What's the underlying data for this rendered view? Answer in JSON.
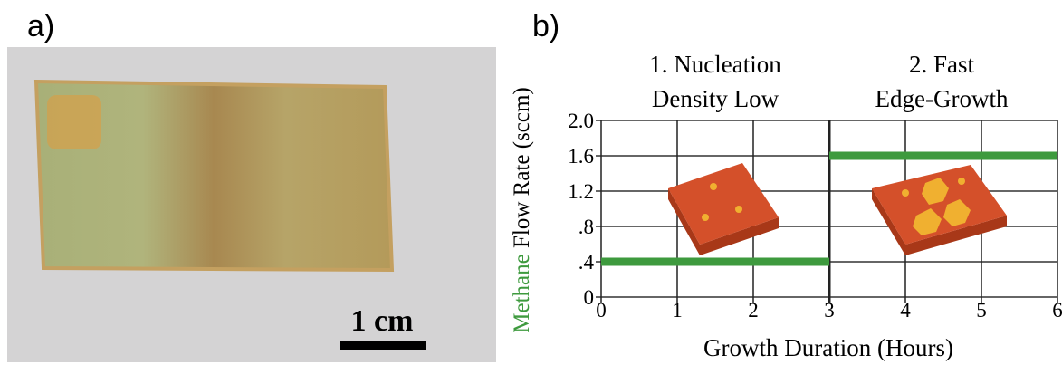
{
  "panel_a": {
    "label": "a)",
    "scale_bar": "1 cm"
  },
  "chart_data": {
    "type": "line",
    "panel_label": "b)",
    "annotations": [
      "1. Nucleation",
      "Density Low",
      "2. Fast",
      "Edge-Growth"
    ],
    "xlabel": "Growth Duration (Hours)",
    "ylabel_parts": [
      "Methane",
      "Flow Rate (sccm)"
    ],
    "ylabel_highlight_color": "#3e9a3e",
    "series": [
      {
        "color": "#3e9a3e",
        "x": [
          0,
          3
        ],
        "values": [
          0.4,
          0.4
        ]
      },
      {
        "color": "#3e9a3e",
        "x": [
          3,
          6
        ],
        "values": [
          1.6,
          1.6
        ]
      }
    ],
    "xlim": [
      0,
      6
    ],
    "xticks": [
      0,
      1,
      2,
      3,
      4,
      5,
      6
    ],
    "ylim": [
      0,
      2
    ],
    "yticks": [
      0,
      {
        "value": 0.4,
        "label": ".4"
      },
      {
        "value": 0.8,
        "label": ".8"
      },
      1.2,
      1.6,
      {
        "value": 2,
        "label": "2.0"
      }
    ],
    "grid": true
  }
}
